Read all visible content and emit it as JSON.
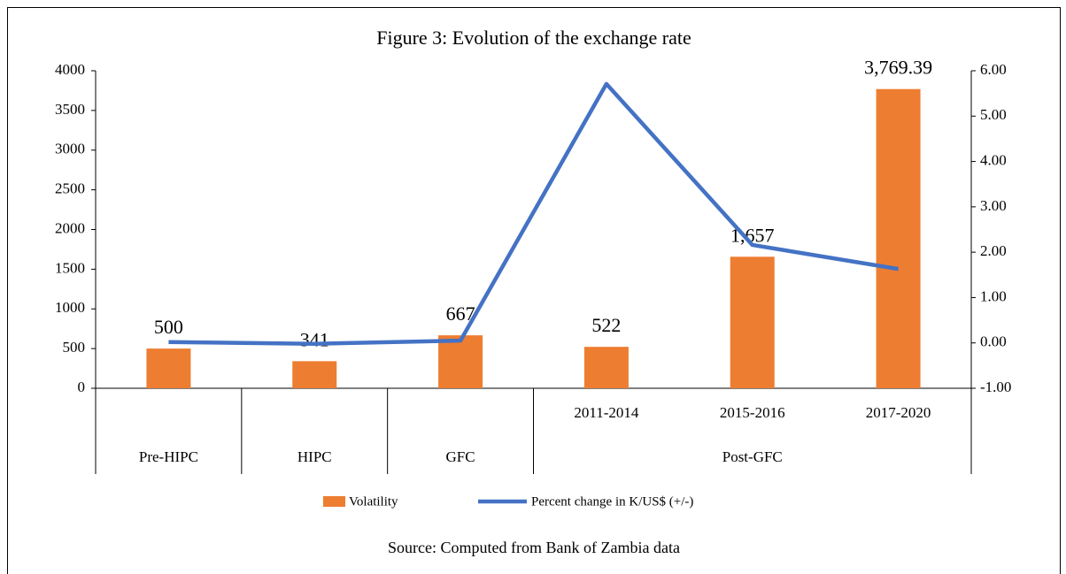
{
  "chart_data": {
    "type": "bar+line",
    "title": "Figure 3: Evolution of the exchange rate",
    "source": "Source: Computed from Bank of Zambia data",
    "categories": [
      null,
      null,
      null,
      "2011-2014",
      "2015-2016",
      "2017-2020"
    ],
    "groups": [
      {
        "label": "Pre-HIPC",
        "span": 1
      },
      {
        "label": "HIPC",
        "span": 1
      },
      {
        "label": "GFC",
        "span": 1
      },
      {
        "label": "Post-GFC",
        "span": 3
      }
    ],
    "series": [
      {
        "name": "Volatility",
        "type": "bar",
        "color": "#ed7d31",
        "values": [
          500,
          341,
          667,
          522,
          1657,
          3769.39
        ],
        "value_labels": [
          "500",
          "341",
          "667",
          "522",
          "1,657",
          "3,769.39"
        ]
      },
      {
        "name": "Percent change in K/US$ (+/-)",
        "type": "line",
        "axis": "y2",
        "color": "#4472c4",
        "values": [
          0.02,
          -0.02,
          0.05,
          5.71,
          2.16,
          1.63
        ]
      }
    ],
    "ylim": [
      0,
      4000
    ],
    "yticks": [
      0,
      500,
      1000,
      1500,
      2000,
      2500,
      3000,
      3500,
      4000
    ],
    "y2lim": [
      -1,
      6
    ],
    "y2ticks": [
      {
        "value": -1,
        "label": "-1.00"
      },
      {
        "value": 0,
        "label": "0.00"
      },
      {
        "value": 1,
        "label": "1.00"
      },
      {
        "value": 2,
        "label": "2.00"
      },
      {
        "value": 3,
        "label": "3.00"
      },
      {
        "value": 4,
        "label": "4.00"
      },
      {
        "value": 5,
        "label": "5.00"
      },
      {
        "value": 6,
        "label": "6.00"
      }
    ],
    "legend": "bottom"
  }
}
